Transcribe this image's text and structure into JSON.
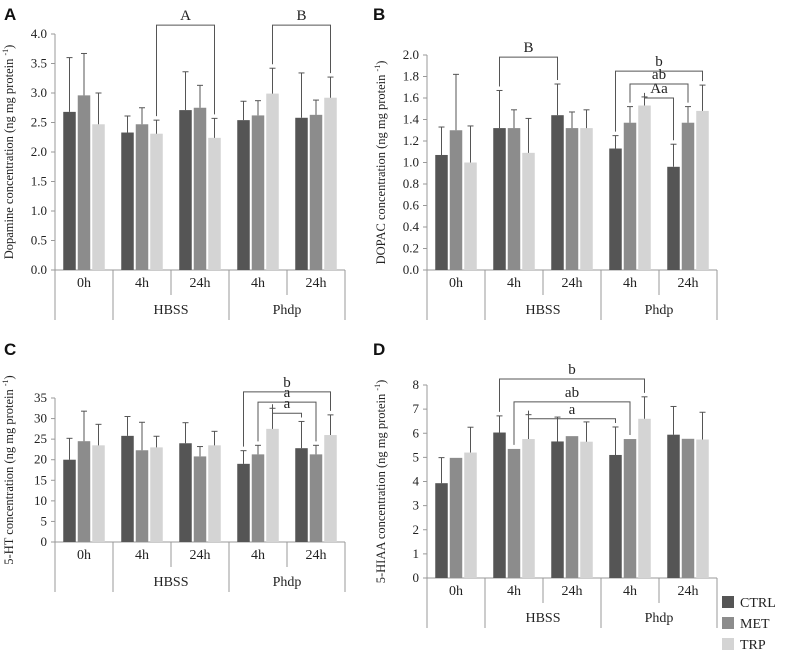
{
  "chart_data": [
    {
      "panel": "A",
      "type": "bar",
      "ylabel": "Dopamine concentration (ng mg protein",
      "ylabel_sup": "-1",
      "ylabel_close": ")",
      "ylim": [
        0,
        4.0
      ],
      "yticks": [
        "0.0",
        "0.5",
        "1.0",
        "1.5",
        "2.0",
        "2.5",
        "3.0",
        "3.5",
        "4.0"
      ],
      "categories": [
        "0h",
        "4h",
        "24h",
        "4h",
        "24h"
      ],
      "groups": [
        "HBSS",
        "Phdp"
      ],
      "series": [
        {
          "name": "CTRL",
          "values": [
            2.68,
            2.33,
            2.71,
            2.54,
            2.58
          ],
          "errors": [
            0.92,
            0.28,
            0.65,
            0.32,
            0.76
          ]
        },
        {
          "name": "MET",
          "values": [
            2.96,
            2.47,
            2.75,
            2.62,
            2.63
          ],
          "errors": [
            0.71,
            0.28,
            0.38,
            0.25,
            0.25
          ]
        },
        {
          "name": "TRP",
          "values": [
            2.47,
            2.31,
            2.24,
            2.99,
            2.92
          ],
          "errors": [
            0.53,
            0.23,
            0.33,
            0.43,
            0.35
          ]
        }
      ],
      "annotations": [
        {
          "label": "A",
          "from": [
            1,
            2
          ],
          "to": [
            2,
            2
          ],
          "level": 4.15
        },
        {
          "label": "B",
          "from": [
            3,
            2
          ],
          "to": [
            4,
            2
          ],
          "level": 4.15
        }
      ]
    },
    {
      "panel": "B",
      "type": "bar",
      "ylabel": "DOPAC concentration (ng mg protein",
      "ylabel_sup": "-1",
      "ylabel_close": ")",
      "ylim": [
        0,
        2.0
      ],
      "yticks": [
        "0.0",
        "0.2",
        "0.4",
        "0.6",
        "0.8",
        "1.0",
        "1.2",
        "1.4",
        "1.6",
        "1.8",
        "2.0"
      ],
      "categories": [
        "0h",
        "4h",
        "24h",
        "4h",
        "24h"
      ],
      "groups": [
        "HBSS",
        "Phdp"
      ],
      "series": [
        {
          "name": "CTRL",
          "values": [
            1.07,
            1.32,
            1.44,
            1.13,
            0.96
          ],
          "errors": [
            0.26,
            0.35,
            0.29,
            0.12,
            0.21
          ]
        },
        {
          "name": "MET",
          "values": [
            1.3,
            1.32,
            1.32,
            1.37,
            1.37
          ],
          "errors": [
            0.52,
            0.17,
            0.15,
            0.15,
            0.15
          ]
        },
        {
          "name": "TRP",
          "values": [
            1.0,
            1.09,
            1.32,
            1.53,
            1.48
          ],
          "errors": [
            0.34,
            0.32,
            0.17,
            0.08,
            0.24
          ]
        }
      ],
      "annotations": [
        {
          "label": "B",
          "from": [
            1,
            0
          ],
          "to": [
            2,
            0
          ],
          "level": 1.98
        },
        {
          "label": "b",
          "from": [
            3,
            0
          ],
          "to": [
            4,
            2
          ],
          "level": 1.85
        },
        {
          "label": "ab",
          "from": [
            3,
            1
          ],
          "to": [
            4,
            1
          ],
          "level": 1.73
        },
        {
          "label": "Aa",
          "from": [
            3,
            2
          ],
          "to": [
            4,
            0
          ],
          "level": 1.6
        }
      ]
    },
    {
      "panel": "C",
      "type": "bar",
      "ylabel": "5-HT concentration (ng mg protein",
      "ylabel_sup": "-1",
      "ylabel_close": ")",
      "ylim": [
        0,
        35
      ],
      "yticks": [
        "0",
        "5",
        "10",
        "15",
        "20",
        "25",
        "30",
        "35"
      ],
      "categories": [
        "0h",
        "4h",
        "24h",
        "4h",
        "24h"
      ],
      "groups": [
        "HBSS",
        "Phdp"
      ],
      "series": [
        {
          "name": "CTRL",
          "values": [
            20.0,
            25.8,
            24.0,
            19.0,
            22.8
          ],
          "errors": [
            5.2,
            4.7,
            5.0,
            3.2,
            6.5
          ]
        },
        {
          "name": "MET",
          "values": [
            24.5,
            22.3,
            20.8,
            21.3,
            21.3
          ],
          "errors": [
            7.3,
            6.8,
            2.4,
            2.2,
            2.2
          ]
        },
        {
          "name": "TRP",
          "values": [
            23.5,
            23.0,
            23.5,
            27.5,
            26.0
          ],
          "errors": [
            5.1,
            2.7,
            3.4,
            5.0,
            4.9
          ]
        }
      ],
      "annotations": [
        {
          "label": "b",
          "from": [
            3,
            0
          ],
          "to": [
            4,
            2
          ],
          "level": 36.5
        },
        {
          "label": "a",
          "from": [
            3,
            1
          ],
          "to": [
            4,
            1
          ],
          "level": 34.0
        },
        {
          "label": "a",
          "from": [
            3,
            2
          ],
          "to": [
            4,
            0
          ],
          "level": 31.3
        }
      ]
    },
    {
      "panel": "D",
      "type": "bar",
      "ylabel": "5-HIAA concentration (ng mg protein",
      "ylabel_sup": "-1",
      "ylabel_close": ")",
      "ylim": [
        0,
        8
      ],
      "yticks": [
        "0",
        "1",
        "2",
        "3",
        "4",
        "5",
        "6",
        "7",
        "8"
      ],
      "categories": [
        "0h",
        "4h",
        "24h",
        "4h",
        "24h"
      ],
      "groups": [
        "HBSS",
        "Phdp"
      ],
      "series": [
        {
          "name": "CTRL",
          "values": [
            3.93,
            6.03,
            5.66,
            5.1,
            5.94
          ],
          "errors": [
            1.06,
            0.69,
            1.01,
            1.16,
            1.17
          ]
        },
        {
          "name": "MET",
          "values": [
            4.98,
            5.35,
            5.88,
            5.76,
            5.77
          ]
        },
        {
          "name": "TRP",
          "values": [
            5.2,
            5.76,
            5.65,
            6.6,
            5.74
          ],
          "errors": [
            1.05,
            1.01,
            0.82,
            0.91,
            1.13
          ]
        }
      ],
      "annotations": [
        {
          "label": "b",
          "from": [
            1,
            0
          ],
          "to": [
            3,
            2
          ],
          "level": 8.25
        },
        {
          "label": "ab",
          "from": [
            1,
            1
          ],
          "to": [
            3,
            1
          ],
          "level": 7.3
        },
        {
          "label": "a",
          "from": [
            1,
            2
          ],
          "to": [
            3,
            0
          ],
          "level": 6.6
        }
      ]
    }
  ],
  "legend": [
    {
      "name": "CTRL",
      "color": "#555555"
    },
    {
      "name": "MET",
      "color": "#8c8c8c"
    },
    {
      "name": "TRP",
      "color": "#d4d4d4"
    }
  ]
}
